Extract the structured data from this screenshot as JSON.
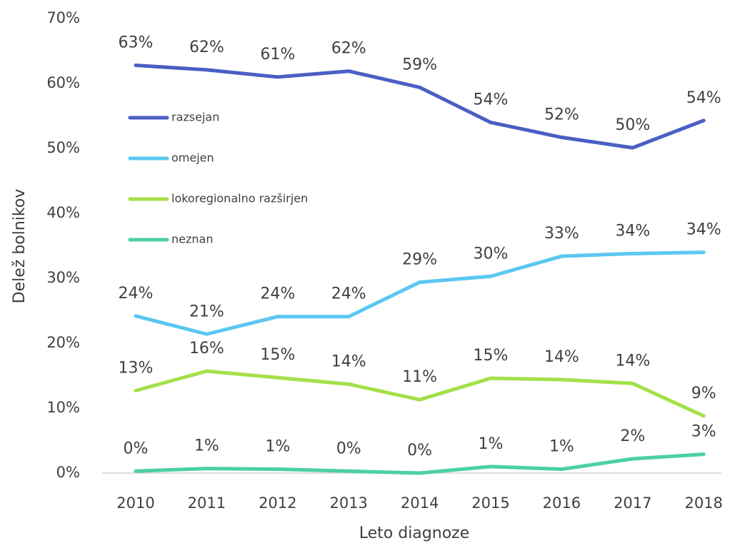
{
  "chart_data": {
    "type": "line",
    "xlabel": "Leto diagnoze",
    "ylabel": "Delež bolnikov",
    "categories": [
      "2010",
      "2011",
      "2012",
      "2013",
      "2014",
      "2015",
      "2016",
      "2017",
      "2018"
    ],
    "ylim": [
      0,
      70
    ],
    "yticks": [
      {
        "value": 0,
        "label": "0%"
      },
      {
        "value": 10,
        "label": "10%"
      },
      {
        "value": 20,
        "label": "20%"
      },
      {
        "value": 30,
        "label": "30%"
      },
      {
        "value": 40,
        "label": "40%"
      },
      {
        "value": 50,
        "label": "50%"
      },
      {
        "value": 60,
        "label": "60%"
      },
      {
        "value": 70,
        "label": "70%"
      }
    ],
    "grid": false,
    "series": [
      {
        "name": "razsejan",
        "color": "#4a5fc4",
        "values": [
          62.8,
          62.1,
          61.0,
          61.9,
          59.4,
          54.0,
          51.7,
          50.1,
          54.3
        ],
        "value_labels": [
          "63%",
          "62%",
          "61%",
          "62%",
          "59%",
          "54%",
          "52%",
          "50%",
          "54%"
        ]
      },
      {
        "name": "omejen",
        "color": "#5bc8f0",
        "values": [
          24.2,
          21.4,
          24.1,
          24.1,
          29.4,
          30.3,
          33.4,
          33.8,
          34.0
        ],
        "value_labels": [
          "24%",
          "21%",
          "24%",
          "24%",
          "29%",
          "30%",
          "33%",
          "34%",
          "34%"
        ]
      },
      {
        "name": "lokoregionalno razširjen",
        "color": "#a4e04a",
        "values": [
          12.7,
          15.7,
          14.7,
          13.7,
          11.3,
          14.6,
          14.4,
          13.8,
          8.8
        ],
        "value_labels": [
          "13%",
          "16%",
          "15%",
          "14%",
          "11%",
          "15%",
          "14%",
          "14%",
          "9%"
        ]
      },
      {
        "name": "neznan",
        "color": "#4dcfa8",
        "values": [
          0.3,
          0.7,
          0.6,
          0.3,
          0.0,
          1.0,
          0.6,
          2.2,
          2.9
        ],
        "value_labels": [
          "0%",
          "1%",
          "1%",
          "0%",
          "0%",
          "1%",
          "1%",
          "2%",
          "3%"
        ]
      }
    ]
  }
}
